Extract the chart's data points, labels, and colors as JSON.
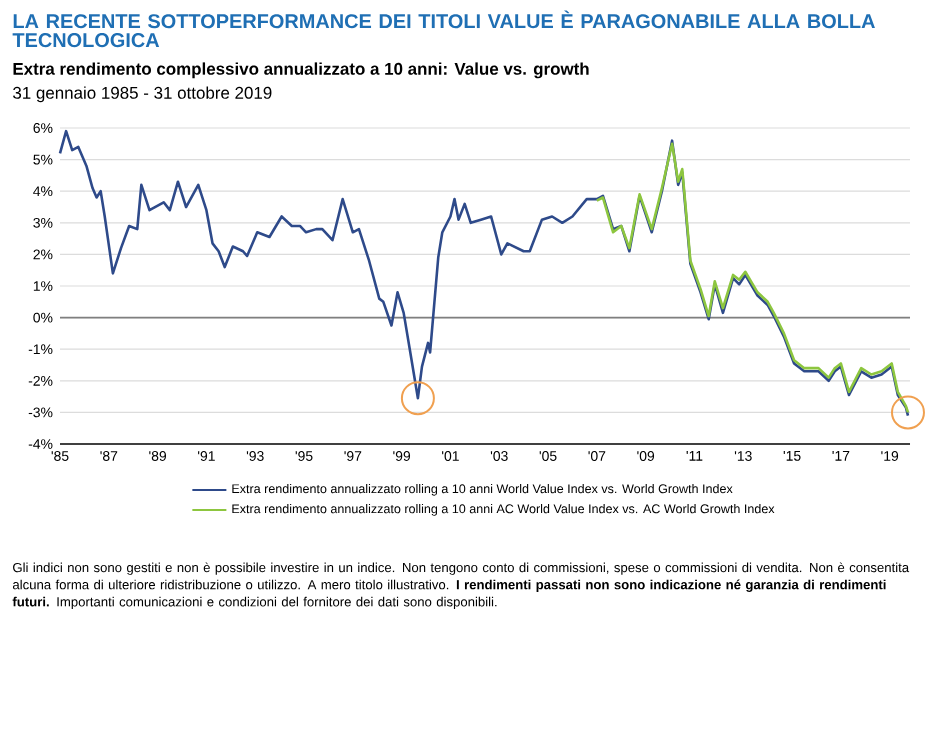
{
  "chart_data": {
    "type": "line",
    "title": "LA RECENTE SOTTOPERFORMANCE DEI TITOLI VALUE È PARAGONABILE ALLA BOLLA TECNOLOGICA",
    "subtitle": "Extra rendimento complessivo annualizzato a 10 anni: Value vs. growth",
    "annotations": [
      "31 gennaio 1985 - 31 ottobre 2019",
      "Gli indici non sono gestiti e non è possibile investire in un indice. Non tengono conto di commissioni, spese o commissioni di vendita. Non è consentita alcuna forma di ulteriore ridistribuzione o utilizzo. A mero titolo illustrativo. **I rendimenti passati non sono indicazione né garanzia di rendimenti futuri.** Importanti comunicazioni e condizioni del fornitore dei dati sono disponibili."
    ],
    "x": [
      "1985-01",
      "1985-04",
      "1985-07",
      "1985-10",
      "1986-02",
      "1986-05",
      "1986-07",
      "1986-09",
      "1986-11",
      "1987-03",
      "1987-07",
      "1987-11",
      "1988-03",
      "1988-05",
      "1988-09",
      "1989-04",
      "1989-07",
      "1989-11",
      "1990-03",
      "1990-09",
      "1991-01",
      "1991-04",
      "1991-07",
      "1991-10",
      "1992-02",
      "1992-07",
      "1992-09",
      "1993-02",
      "1993-08",
      "1994-02",
      "1994-07",
      "1994-11",
      "1995-02",
      "1995-07",
      "1995-10",
      "1996-03",
      "1996-08",
      "1997-01",
      "1997-04",
      "1997-09",
      "1998-02",
      "1998-04",
      "1998-08",
      "1998-11",
      "1999-02",
      "1999-05",
      "1999-09",
      "1999-11",
      "2000-02",
      "2000-03",
      "2000-07",
      "2000-09",
      "2001-01",
      "2001-03",
      "2001-05",
      "2001-08",
      "2001-11",
      "2002-04",
      "2002-09",
      "2003-02",
      "2003-05",
      "2004-01",
      "2004-04",
      "2004-10",
      "2005-03",
      "2005-08",
      "2006-01",
      "2006-08",
      "2007-01",
      "2007-04",
      "2007-09",
      "2008-01",
      "2008-05",
      "2008-10",
      "2009-04",
      "2009-09",
      "2010-02",
      "2010-05",
      "2010-07",
      "2010-11",
      "2011-04",
      "2011-08",
      "2011-11",
      "2012-03",
      "2012-08",
      "2012-11",
      "2013-02",
      "2013-08",
      "2014-01",
      "2014-04",
      "2014-09",
      "2015-02",
      "2015-07",
      "2016-02",
      "2016-07",
      "2016-10",
      "2017-01",
      "2017-05",
      "2017-11",
      "2018-04",
      "2018-09",
      "2019-02",
      "2019-05",
      "2019-09",
      "2019-10"
    ],
    "series": [
      {
        "name": "Extra rendimento annualizzato rolling a 10 anni World Value Index vs. World Growth Index",
        "color": "#2e4a8a",
        "values": [
          5.2,
          5.9,
          5.3,
          5.4,
          4.8,
          4.1,
          3.8,
          4.0,
          3.2,
          1.4,
          2.2,
          2.9,
          2.8,
          4.2,
          3.4,
          3.65,
          3.4,
          4.3,
          3.5,
          4.2,
          3.4,
          2.35,
          2.1,
          1.6,
          2.25,
          2.1,
          1.95,
          2.7,
          2.55,
          3.2,
          2.9,
          2.9,
          2.7,
          2.8,
          2.8,
          2.45,
          3.75,
          2.7,
          2.8,
          1.8,
          0.6,
          0.5,
          -0.25,
          0.8,
          0.15,
          -1.0,
          -2.55,
          -1.55,
          -0.8,
          -1.1,
          1.9,
          2.7,
          3.2,
          3.75,
          3.1,
          3.6,
          3.0,
          3.1,
          3.2,
          2.0,
          2.35,
          2.1,
          2.1,
          3.1,
          3.2,
          3.0,
          3.2,
          3.75,
          3.75,
          3.85,
          2.8,
          2.9,
          2.1,
          3.85,
          2.7,
          4.0,
          5.6,
          4.2,
          4.6,
          1.7,
          0.8,
          -0.05,
          1.05,
          0.15,
          1.25,
          1.05,
          1.35,
          0.7,
          0.4,
          0.05,
          -0.6,
          -1.45,
          -1.7,
          -1.7,
          -2.0,
          -1.7,
          -1.55,
          -2.45,
          -1.7,
          -1.9,
          -1.8,
          -1.55,
          -2.45,
          -2.85,
          -3.1
        ]
      },
      {
        "name": "Extra rendimento annualizzato rolling a 10 anni AC World Value Index vs. AC World Growth Index",
        "color": "#8dc63f",
        "x": [
          "2007-01",
          "2007-04",
          "2007-09",
          "2008-01",
          "2008-05",
          "2008-10",
          "2009-04",
          "2009-09",
          "2010-02",
          "2010-05",
          "2010-07",
          "2010-11",
          "2011-04",
          "2011-08",
          "2011-11",
          "2012-03",
          "2012-08",
          "2012-11",
          "2013-02",
          "2013-08",
          "2014-01",
          "2014-04",
          "2014-09",
          "2015-02",
          "2015-07",
          "2016-02",
          "2016-07",
          "2016-10",
          "2017-01",
          "2017-05",
          "2017-11",
          "2018-04",
          "2018-09",
          "2019-02",
          "2019-05",
          "2019-09",
          "2019-10"
        ],
        "values": [
          3.7,
          3.8,
          2.7,
          2.9,
          2.2,
          3.9,
          2.8,
          4.1,
          5.5,
          4.3,
          4.7,
          1.8,
          0.9,
          0.05,
          1.15,
          0.3,
          1.35,
          1.2,
          1.45,
          0.8,
          0.5,
          0.15,
          -0.5,
          -1.35,
          -1.6,
          -1.6,
          -1.9,
          -1.6,
          -1.45,
          -2.35,
          -1.6,
          -1.8,
          -1.7,
          -1.45,
          -2.35,
          -2.8,
          -3.0
        ]
      }
    ],
    "xlim": [
      "1985-01",
      "2019-11"
    ],
    "xticks": [
      {
        "value": "1985",
        "label": "'85"
      },
      {
        "value": "1987",
        "label": "'87"
      },
      {
        "value": "1989",
        "label": "'89"
      },
      {
        "value": "1991",
        "label": "'91"
      },
      {
        "value": "1993",
        "label": "'93"
      },
      {
        "value": "1995",
        "label": "'95"
      },
      {
        "value": "1997",
        "label": "'97"
      },
      {
        "value": "1999",
        "label": "'99"
      },
      {
        "value": "2001",
        "label": "'01"
      },
      {
        "value": "2003",
        "label": "'03"
      },
      {
        "value": "2005",
        "label": "'05"
      },
      {
        "value": "2007",
        "label": "'07"
      },
      {
        "value": "2009",
        "label": "'09"
      },
      {
        "value": "2011",
        "label": "'11"
      },
      {
        "value": "2013",
        "label": "'13"
      },
      {
        "value": "2015",
        "label": "'15"
      },
      {
        "value": "2017",
        "label": "'17"
      },
      {
        "value": "2019",
        "label": "'19"
      }
    ],
    "ylim": [
      -4,
      6
    ],
    "yticks": [
      {
        "value": -4,
        "label": "-4%"
      },
      {
        "value": -3,
        "label": "-3%"
      },
      {
        "value": -2,
        "label": "-2%"
      },
      {
        "value": -1,
        "label": "-1%"
      },
      {
        "value": 0,
        "label": "0%"
      },
      {
        "value": 1,
        "label": "1%"
      },
      {
        "value": 2,
        "label": "2%"
      },
      {
        "value": 3,
        "label": "3%"
      },
      {
        "value": 4,
        "label": "4%"
      },
      {
        "value": 5,
        "label": "5%"
      },
      {
        "value": 6,
        "label": "6%"
      }
    ],
    "ref_lines": [
      {
        "axis": "y",
        "value": 0,
        "color": "#7f7f7f"
      }
    ],
    "grid": "y",
    "legend": "bottom",
    "marker": "none",
    "line_style": "solid"
  }
}
